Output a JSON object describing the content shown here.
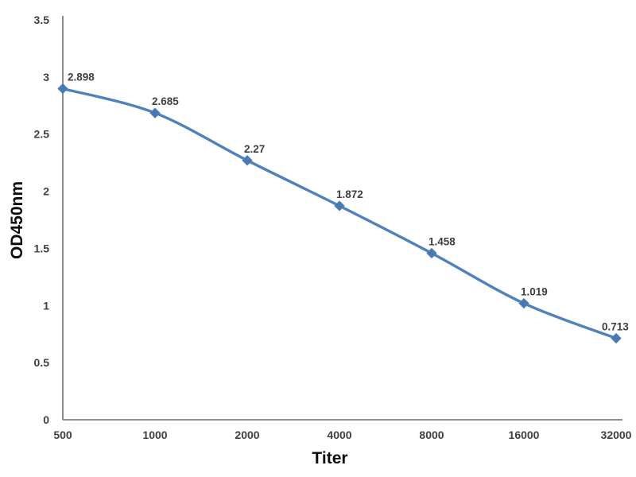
{
  "chart_data": {
    "type": "line",
    "title": "",
    "xlabel": "Titer",
    "ylabel": "OD450nm",
    "categories": [
      "500",
      "1000",
      "2000",
      "4000",
      "8000",
      "16000",
      "32000"
    ],
    "x": [
      500,
      1000,
      2000,
      4000,
      8000,
      16000,
      32000
    ],
    "values": [
      2.898,
      2.685,
      2.27,
      1.872,
      1.458,
      1.019,
      0.713
    ],
    "data_labels": [
      "2.898",
      "2.685",
      "2.27",
      "1.872",
      "1.458",
      "1.019",
      "0.713"
    ],
    "y_ticks": [
      0,
      0.5,
      1,
      1.5,
      2,
      2.5,
      3,
      3.5
    ],
    "y_tick_labels": [
      "0",
      "0.5",
      "1",
      "1.5",
      "2",
      "2.5",
      "3",
      "3.5"
    ],
    "ylim": [
      0,
      3.5
    ],
    "x_spacing": "equal (log2 titer steps)",
    "grid": false,
    "legend": false,
    "marker": "diamond",
    "line_smooth": true,
    "colors": {
      "line": "#4f81bd",
      "marker": "#4879b0",
      "axis": "#808080",
      "tick_text": "#404040",
      "data_label_text": "#3f3f3f",
      "axis_title_text": "#0d0d0d",
      "background": "#ffffff"
    }
  }
}
